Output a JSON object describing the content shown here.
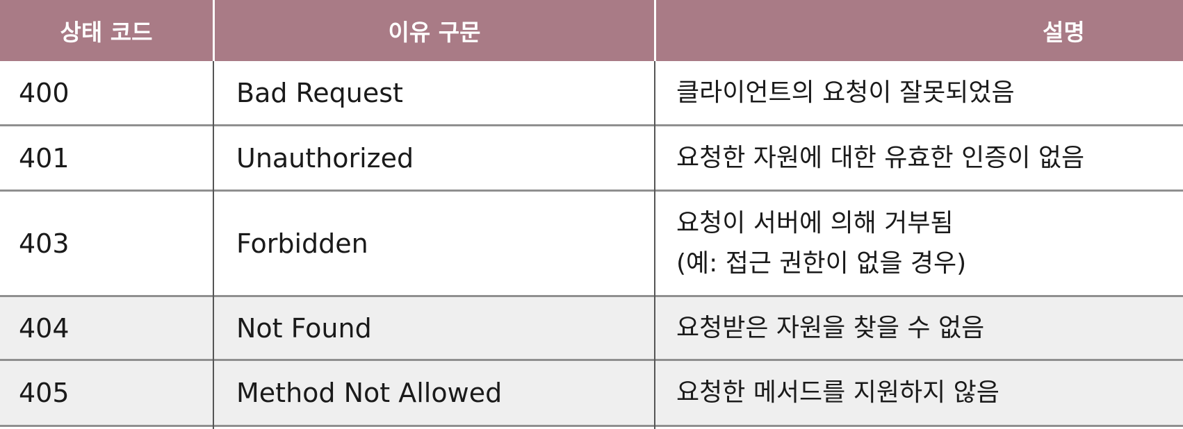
{
  "table": {
    "headers": {
      "status_code": "상태 코드",
      "reason_phrase": "이유 구문",
      "description": "설명"
    },
    "rows": [
      {
        "code": "400",
        "reason": "Bad Request",
        "desc_lines": [
          "클라이언트의 요청이 잘못되었음"
        ]
      },
      {
        "code": "401",
        "reason": "Unauthorized",
        "desc_lines": [
          "요청한 자원에 대한 유효한 인증이 없음"
        ]
      },
      {
        "code": "403",
        "reason": "Forbidden",
        "desc_lines": [
          "요청이 서버에 의해 거부됨",
          "(예: 접근 권한이 없을 경우)"
        ]
      },
      {
        "code": "404",
        "reason": "Not Found",
        "desc_lines": [
          "요청받은 자원을 찾을 수 없음"
        ]
      },
      {
        "code": "405",
        "reason": "Method Not Allowed",
        "desc_lines": [
          "요청한 메서드를 지원하지 않음"
        ]
      }
    ]
  },
  "colors": {
    "header_bg": "#a97b86",
    "header_text": "#ffffff",
    "shaded_row_bg": "#efefef"
  }
}
